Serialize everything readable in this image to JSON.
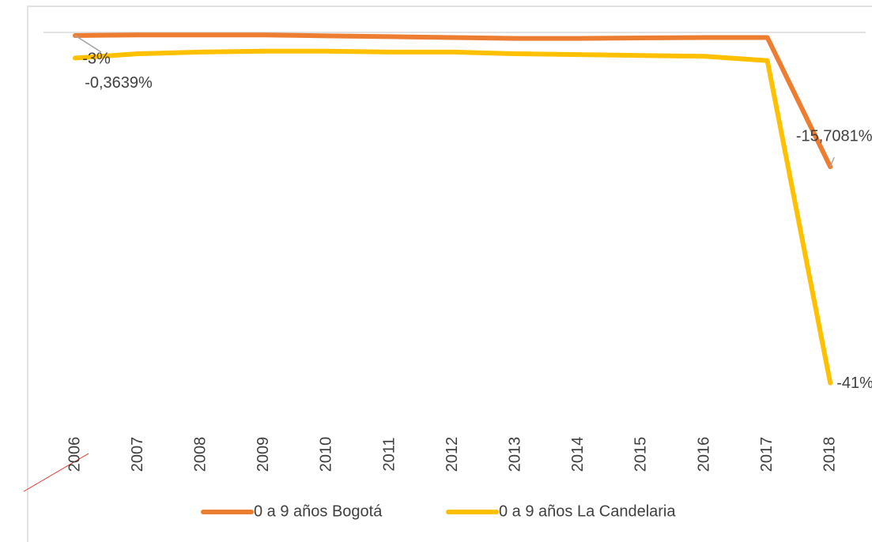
{
  "chart_data": {
    "type": "line",
    "categories": [
      "2006",
      "2007",
      "2008",
      "2009",
      "2010",
      "2011",
      "2012",
      "2013",
      "2014",
      "2015",
      "2016",
      "2017",
      "2018"
    ],
    "series": [
      {
        "name": "0 a 9 años Bogotá",
        "color": "#ED7D31",
        "values": [
          -0.3639,
          -0.3,
          -0.3,
          -0.3,
          -0.4,
          -0.5,
          -0.6,
          -0.7,
          -0.7,
          -0.65,
          -0.6,
          -0.6,
          -15.7081
        ],
        "value_labels": [
          "-0,3639%",
          null,
          null,
          null,
          null,
          null,
          null,
          null,
          null,
          null,
          null,
          null,
          "-15,7081%"
        ]
      },
      {
        "name": "0 a 9 años La Candelaria",
        "color": "#FFC000",
        "values": [
          -3,
          -2.5,
          -2.3,
          -2.2,
          -2.2,
          -2.3,
          -2.3,
          -2.5,
          -2.6,
          -2.7,
          -2.8,
          -3.3,
          -41
        ],
        "value_labels": [
          "-3%",
          null,
          null,
          null,
          null,
          null,
          null,
          null,
          null,
          null,
          null,
          null,
          "-41%"
        ]
      }
    ],
    "ylim": [
      -45,
      0
    ]
  }
}
